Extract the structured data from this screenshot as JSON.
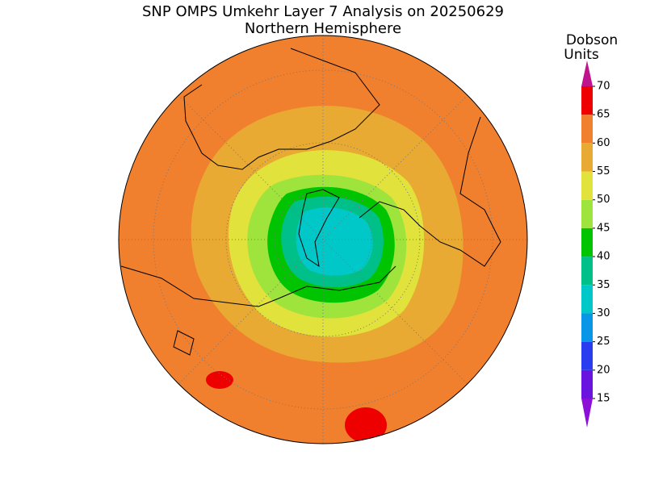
{
  "header": {
    "title": "SNP OMPS Umkehr Layer 7 Analysis on 20250629",
    "subtitle": "Northern Hemisphere"
  },
  "colorbar": {
    "label": [
      "Dobson",
      "Units"
    ],
    "ticks": [
      15,
      20,
      25,
      30,
      35,
      40,
      45,
      50,
      55,
      60,
      65,
      70
    ],
    "colors": [
      "#6a14e0",
      "#2a3cf0",
      "#0a96e6",
      "#00c8c8",
      "#00c08a",
      "#00c400",
      "#9ee43c",
      "#e2e23c",
      "#e8aa32",
      "#f0802e",
      "#ee0000"
    ],
    "under_color": "#8c10d8",
    "over_color": "#c0148c"
  }
}
